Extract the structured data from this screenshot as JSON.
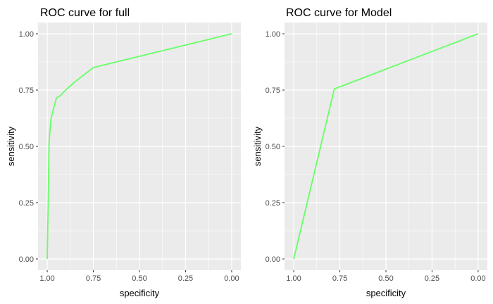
{
  "chart_data": [
    {
      "type": "line",
      "title": "ROC curve for full",
      "xlabel": "specificity",
      "ylabel": "sensitivity",
      "x_reversed": true,
      "xlim": [
        1.0,
        0.0
      ],
      "ylim": [
        0.0,
        1.0
      ],
      "xticks": [
        "1.00",
        "0.75",
        "0.50",
        "0.25",
        "0.00"
      ],
      "yticks": [
        "0.00",
        "0.25",
        "0.50",
        "0.75",
        "1.00"
      ],
      "grid": true,
      "line_color": "#66ff66",
      "panel_bg": "#ebebeb",
      "series": [
        {
          "x": [
            1.0,
            0.995,
            0.99,
            0.98,
            0.965,
            0.95,
            0.93,
            0.9,
            0.86,
            0.75,
            0.0
          ],
          "y": [
            0.0,
            0.25,
            0.52,
            0.62,
            0.67,
            0.715,
            0.725,
            0.75,
            0.78,
            0.85,
            1.0
          ]
        }
      ]
    },
    {
      "type": "line",
      "title": "ROC curve for Model",
      "xlabel": "specificity",
      "ylabel": "sensitivity",
      "x_reversed": true,
      "xlim": [
        1.0,
        0.0
      ],
      "ylim": [
        0.0,
        1.0
      ],
      "xticks": [
        "1.00",
        "0.75",
        "0.50",
        "0.25",
        "0.00"
      ],
      "yticks": [
        "0.00",
        "0.25",
        "0.50",
        "0.75",
        "1.00"
      ],
      "grid": true,
      "line_color": "#66ff66",
      "panel_bg": "#ebebeb",
      "series": [
        {
          "x": [
            1.0,
            0.78,
            0.0
          ],
          "y": [
            0.0,
            0.755,
            1.0
          ]
        }
      ]
    }
  ]
}
